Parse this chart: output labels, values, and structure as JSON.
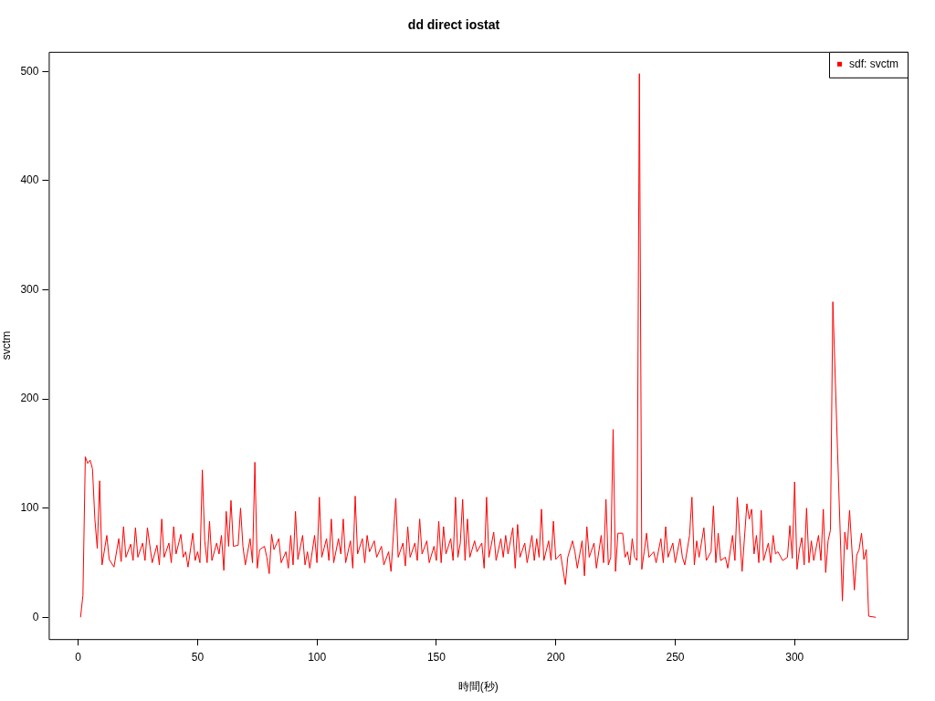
{
  "chart_data": {
    "type": "line",
    "title": "dd direct iostat",
    "xlabel": "時間(秒)",
    "ylabel": "svctm",
    "xlim": [
      -12.3,
      347.3
    ],
    "ylim": [
      -20,
      518
    ],
    "xticks": [
      0,
      50,
      100,
      150,
      200,
      250,
      300
    ],
    "yticks": [
      0,
      100,
      200,
      300,
      400,
      500
    ],
    "grid": false,
    "legend": "top right",
    "line_style": "solid",
    "series": [
      {
        "name": "sdf: svctm",
        "color": "#ff0000",
        "x": [
          1,
          2,
          3,
          4,
          5,
          6,
          7,
          8,
          9,
          10,
          12,
          13,
          15,
          17,
          18,
          19,
          20,
          22,
          23,
          24,
          25,
          27,
          28,
          29,
          31,
          33,
          34,
          35,
          36,
          38,
          39,
          40,
          41,
          43,
          44,
          45,
          46,
          48,
          49,
          50,
          51,
          52,
          53,
          54,
          55,
          56,
          58,
          59,
          60,
          61,
          62,
          63,
          64,
          65,
          67,
          68,
          69,
          70,
          72,
          73,
          74,
          75,
          76,
          78,
          79,
          80,
          81,
          82,
          84,
          85,
          87,
          88,
          89,
          90,
          91,
          92,
          94,
          95,
          96,
          97,
          99,
          100,
          101,
          102,
          104,
          105,
          106,
          107,
          109,
          110,
          111,
          112,
          114,
          115,
          116,
          117,
          119,
          120,
          121,
          122,
          124,
          125,
          127,
          128,
          130,
          131,
          133,
          134,
          136,
          137,
          138,
          139,
          141,
          142,
          143,
          144,
          146,
          147,
          149,
          150,
          151,
          152,
          153,
          154,
          156,
          157,
          158,
          159,
          160,
          161,
          162,
          163,
          164,
          166,
          167,
          169,
          170,
          171,
          172,
          174,
          175,
          177,
          178,
          179,
          180,
          182,
          183,
          184,
          185,
          187,
          188,
          190,
          191,
          192,
          193,
          194,
          195,
          197,
          198,
          199,
          200,
          202,
          204,
          205,
          207,
          208,
          209,
          211,
          212,
          213,
          214,
          216,
          217,
          219,
          220,
          221,
          222,
          223,
          224,
          225,
          226,
          228,
          229,
          230,
          231,
          232,
          233,
          234,
          235,
          236,
          237,
          238,
          239,
          241,
          242,
          244,
          245,
          246,
          247,
          249,
          250,
          252,
          253,
          254,
          256,
          257,
          258,
          259,
          260,
          262,
          263,
          265,
          266,
          267,
          268,
          269,
          271,
          272,
          274,
          275,
          276,
          277,
          278,
          280,
          281,
          282,
          283,
          284,
          285,
          286,
          287,
          289,
          290,
          291,
          292,
          293,
          295,
          297,
          298,
          299,
          300,
          301,
          302,
          303,
          304,
          305,
          306,
          307,
          308,
          310,
          311,
          312,
          313,
          314,
          315,
          316,
          318,
          320,
          321,
          322,
          323,
          325,
          326,
          327,
          328,
          329,
          330,
          331,
          334
        ],
        "values": [
          0,
          20,
          147,
          141,
          144,
          136,
          90,
          63,
          125,
          48,
          75,
          53,
          46,
          72,
          51,
          83,
          55,
          67,
          52,
          82,
          55,
          68,
          52,
          82,
          50,
          66,
          48,
          90,
          55,
          68,
          50,
          83,
          58,
          76,
          55,
          60,
          46,
          77,
          52,
          60,
          50,
          135,
          70,
          50,
          88,
          52,
          68,
          58,
          75,
          43,
          97,
          65,
          107,
          65,
          66,
          100,
          65,
          48,
          72,
          50,
          142,
          45,
          62,
          65,
          55,
          40,
          76,
          62,
          72,
          50,
          60,
          45,
          75,
          48,
          97,
          53,
          75,
          48,
          60,
          45,
          75,
          50,
          110,
          55,
          72,
          52,
          90,
          50,
          72,
          58,
          90,
          50,
          70,
          45,
          111,
          58,
          72,
          50,
          75,
          60,
          70,
          55,
          65,
          48,
          60,
          42,
          109,
          55,
          68,
          47,
          83,
          55,
          68,
          52,
          90,
          58,
          70,
          50,
          65,
          52,
          88,
          50,
          83,
          58,
          72,
          52,
          110,
          55,
          68,
          108,
          52,
          90,
          55,
          70,
          60,
          68,
          45,
          110,
          55,
          78,
          52,
          72,
          55,
          75,
          58,
          82,
          45,
          85,
          55,
          68,
          50,
          75,
          52,
          72,
          55,
          99,
          52,
          70,
          52,
          88,
          53,
          58,
          30,
          55,
          70,
          60,
          45,
          70,
          38,
          83,
          55,
          68,
          45,
          75,
          50,
          108,
          48,
          55,
          172,
          42,
          77,
          77,
          55,
          60,
          48,
          72,
          55,
          52,
          498,
          44,
          60,
          77,
          55,
          60,
          50,
          72,
          50,
          83,
          55,
          68,
          50,
          72,
          55,
          48,
          75,
          110,
          48,
          70,
          55,
          82,
          52,
          60,
          102,
          50,
          77,
          52,
          55,
          45,
          75,
          52,
          110,
          75,
          42,
          104,
          90,
          99,
          58,
          75,
          50,
          98,
          52,
          68,
          50,
          75,
          58,
          60,
          52,
          55,
          84,
          54,
          124,
          44,
          62,
          73,
          48,
          100,
          50,
          70,
          52,
          75,
          52,
          99,
          41,
          70,
          80,
          289,
          150,
          15,
          78,
          62,
          98,
          25,
          57,
          62,
          77,
          53,
          62,
          1,
          0
        ]
      }
    ]
  }
}
